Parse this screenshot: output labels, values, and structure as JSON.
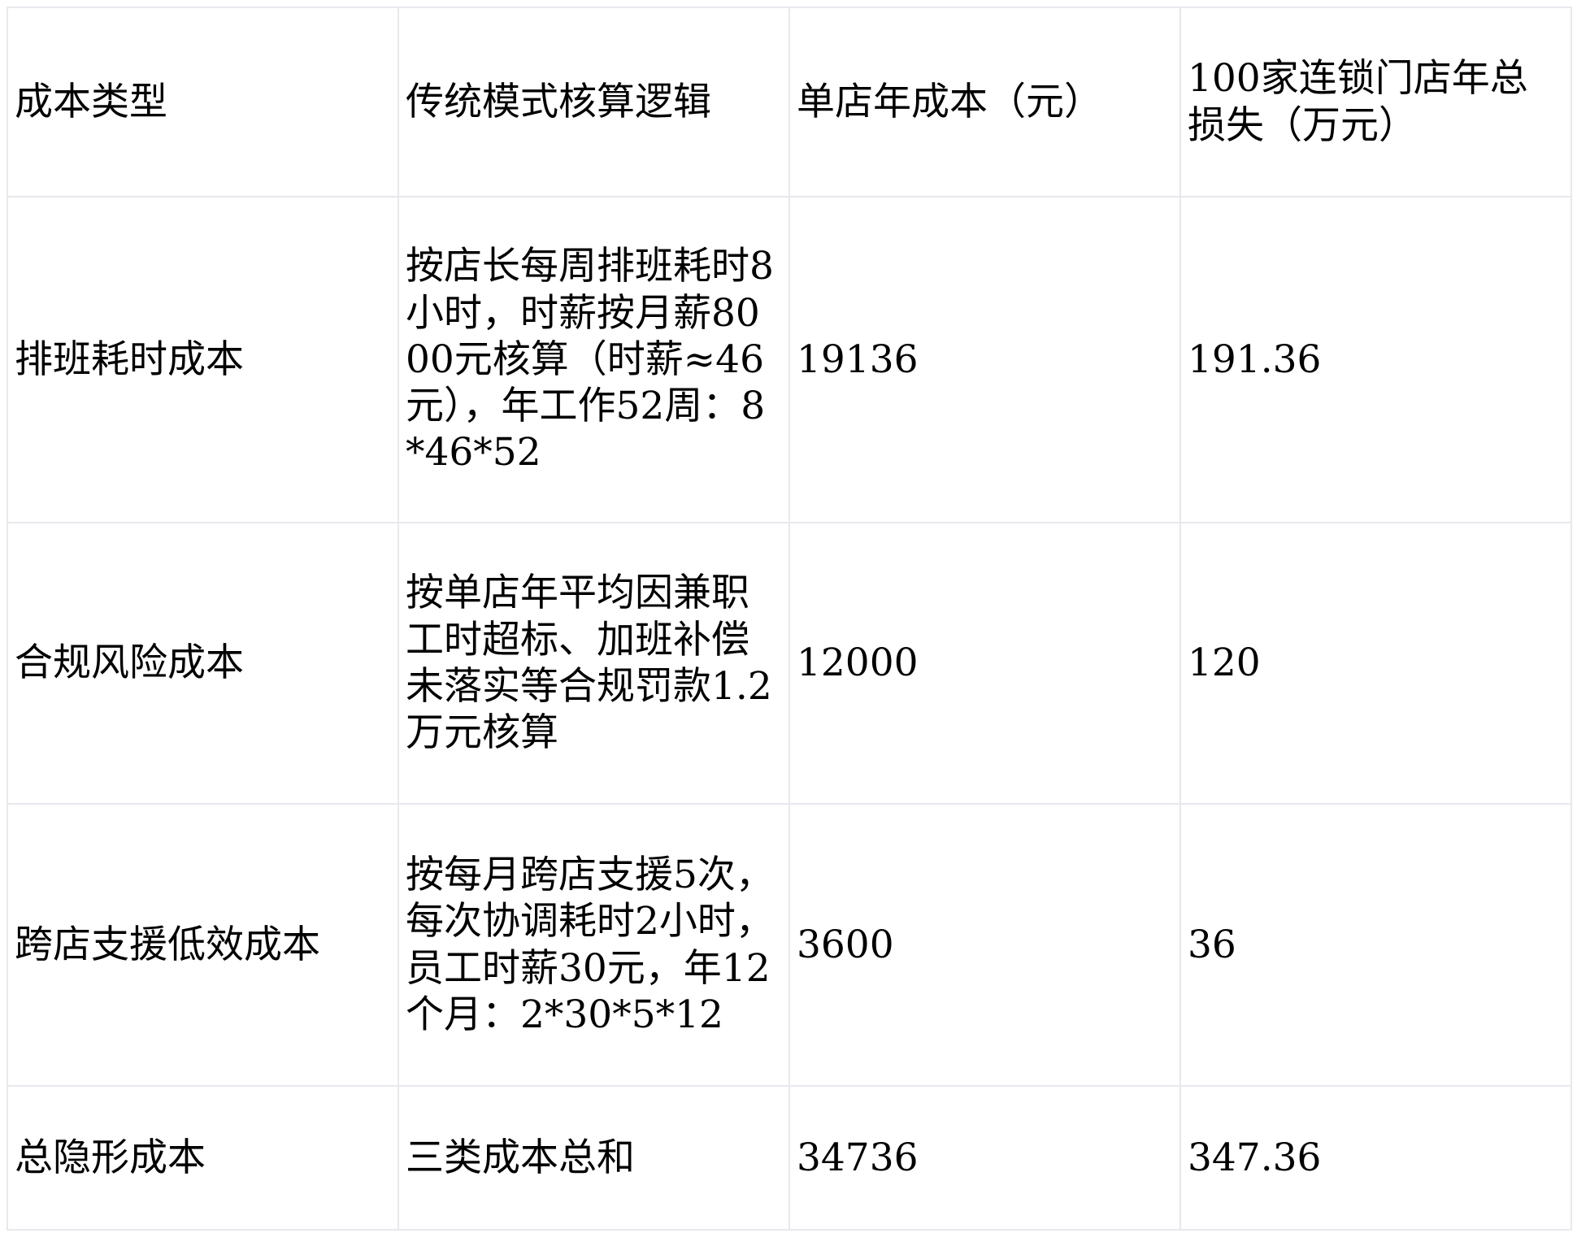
{
  "table": {
    "headers": [
      "成本类型",
      "传统模式核算逻辑",
      "单店年成本（元）",
      "100家连锁门店年总损失（万元）"
    ],
    "rows": [
      [
        "排班耗时成本",
        "按店长每周排班耗时8小时，时薪按月薪8000元核算（时薪≈46元），年工作52周：8*46*52",
        "19136",
        "191.36"
      ],
      [
        "合规风险成本",
        "按单店年平均因兼职工时超标、加班补偿未落实等合规罚款1.2万元核算",
        "12000",
        "120"
      ],
      [
        "跨店支援低效成本",
        "按每月跨店支援5次，每次协调耗时2小时，员工时薪30元，年12个月：2*30*5*12",
        "3600",
        "36"
      ],
      [
        "总隐形成本",
        "三类成本总和",
        "34736",
        "347.36"
      ]
    ]
  }
}
